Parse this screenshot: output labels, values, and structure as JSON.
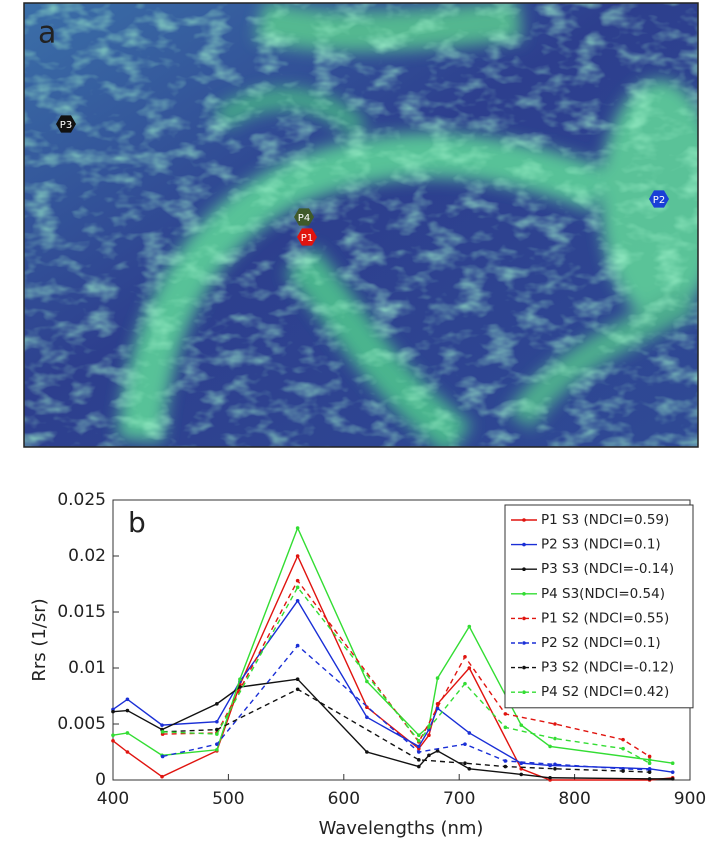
{
  "panel_a": {
    "label": "a",
    "points": [
      {
        "label": "P3",
        "color": "#111111"
      },
      {
        "label": "P4",
        "color": "#3f5a2a"
      },
      {
        "label": "P1",
        "color": "#e0140f"
      },
      {
        "label": "P2",
        "color": "#1a3fd6"
      }
    ]
  },
  "chart_data": {
    "type": "line",
    "panel_label": "b",
    "x_label": "Wavelengths (nm)",
    "y_label": "Rrs (1/sr)",
    "xlim": [
      400,
      900
    ],
    "ylim": [
      0,
      0.025
    ],
    "xticks": [
      400,
      500,
      600,
      700,
      800,
      900
    ],
    "yticks": [
      0,
      0.005,
      0.01,
      0.015,
      0.02,
      0.025
    ],
    "legend": "upper right",
    "series": [
      {
        "name": "P1 S3 (NDCI=0.59)",
        "color": "#e0140f",
        "linestyle": "solid",
        "x": [
          400,
          412.5,
          442.5,
          490,
          510,
          560,
          620,
          665,
          673.75,
          681.25,
          708.75,
          753.75,
          778.75,
          865,
          885
        ],
        "values": [
          0.0035,
          0.0025,
          0.0003,
          0.0026,
          0.0085,
          0.02,
          0.0065,
          0.0028,
          0.004,
          0.0068,
          0.01,
          0.001,
          0,
          0,
          0.0002
        ]
      },
      {
        "name": "P2 S3 (NDCI=0.1)",
        "color": "#1a2fd6",
        "linestyle": "solid",
        "x": [
          400,
          412.5,
          442.5,
          490,
          510,
          560,
          620,
          665,
          673.75,
          681.25,
          708.75,
          753.75,
          778.75,
          865,
          885
        ],
        "values": [
          0.0063,
          0.0072,
          0.0049,
          0.0052,
          0.0088,
          0.016,
          0.0056,
          0.003,
          0.0045,
          0.0064,
          0.0042,
          0.0015,
          0.0013,
          0.001,
          0.0007
        ]
      },
      {
        "name": "P3 S3 (NDCI=-0.14)",
        "color": "#111111",
        "linestyle": "solid",
        "x": [
          400,
          412.5,
          442.5,
          490,
          510,
          560,
          620,
          665,
          673.75,
          681.25,
          708.75,
          753.75,
          778.75,
          865,
          885
        ],
        "values": [
          0.0061,
          0.0062,
          0.0045,
          0.0068,
          0.0083,
          0.009,
          0.0025,
          0.0012,
          0.0022,
          0.0026,
          0.001,
          0.0005,
          0.0002,
          0.0001,
          0.0001
        ]
      },
      {
        "name": "P4 S3(NDCI=0.54)",
        "color": "#33dd33",
        "linestyle": "solid",
        "x": [
          400,
          412.5,
          442.5,
          490,
          510,
          560,
          620,
          665,
          673.75,
          681.25,
          708.75,
          753.75,
          778.75,
          865,
          885
        ],
        "values": [
          0.004,
          0.0042,
          0.0022,
          0.0027,
          0.009,
          0.0225,
          0.0088,
          0.004,
          0.0048,
          0.0091,
          0.0137,
          0.0049,
          0.003,
          0.0018,
          0.0015
        ]
      },
      {
        "name": "P1 S2 (NDCI=0.55)",
        "color": "#e0140f",
        "linestyle": "dashed",
        "x": [
          443,
          490,
          560,
          665,
          705,
          740,
          783,
          842,
          865
        ],
        "values": [
          0.0041,
          0.0042,
          0.0178,
          0.0034,
          0.011,
          0.0059,
          0.005,
          0.0036,
          0.0021
        ]
      },
      {
        "name": "P2 S2 (NDCI=0.1)",
        "color": "#1a2fd6",
        "linestyle": "dashed",
        "x": [
          443,
          490,
          560,
          665,
          705,
          740,
          783,
          842,
          865
        ],
        "values": [
          0.0021,
          0.0032,
          0.012,
          0.0025,
          0.0032,
          0.0017,
          0.0014,
          0.001,
          0.0009
        ]
      },
      {
        "name": "P3 S2 (NDCI=-0.12)",
        "color": "#111111",
        "linestyle": "dashed",
        "x": [
          443,
          490,
          560,
          665,
          705,
          740,
          783,
          842,
          865
        ],
        "values": [
          0.0043,
          0.0045,
          0.0081,
          0.0018,
          0.0015,
          0.0012,
          0.001,
          0.0008,
          0.0007
        ]
      },
      {
        "name": "P4 S2 (NDCI=0.42)",
        "color": "#33dd33",
        "linestyle": "dashed",
        "x": [
          443,
          490,
          560,
          665,
          705,
          740,
          783,
          842,
          865
        ],
        "values": [
          0.0043,
          0.0041,
          0.0172,
          0.0035,
          0.0086,
          0.0047,
          0.0037,
          0.0028,
          0.0015
        ]
      }
    ]
  }
}
